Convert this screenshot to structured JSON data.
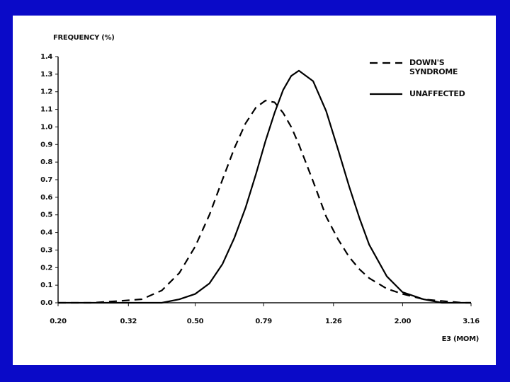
{
  "chart_data": {
    "type": "line",
    "y_label": "FREQUENCY (%)",
    "x_label": "E3 (MOM)",
    "x_scale": "log",
    "x": [
      0.2,
      0.25,
      0.3,
      0.35,
      0.4,
      0.45,
      0.5,
      0.55,
      0.6,
      0.65,
      0.7,
      0.75,
      0.8,
      0.85,
      0.9,
      0.95,
      1.0,
      1.1,
      1.2,
      1.3,
      1.4,
      1.5,
      1.6,
      1.8,
      2.0,
      2.3,
      2.6,
      3.0,
      3.16
    ],
    "series": [
      {
        "name": "DOWN'S SYNDROME",
        "color": "#000000",
        "dash": "dashed",
        "values": [
          0,
          0,
          0.01,
          0.02,
          0.07,
          0.17,
          0.32,
          0.5,
          0.7,
          0.88,
          1.02,
          1.11,
          1.15,
          1.14,
          1.08,
          1.0,
          0.9,
          0.69,
          0.49,
          0.36,
          0.26,
          0.19,
          0.14,
          0.08,
          0.05,
          0.02,
          0.01,
          0,
          0
        ]
      },
      {
        "name": "UNAFFECTED",
        "color": "#000000",
        "dash": "solid",
        "values": [
          0,
          0,
          0,
          0,
          0,
          0.02,
          0.05,
          0.11,
          0.22,
          0.37,
          0.54,
          0.73,
          0.92,
          1.08,
          1.21,
          1.29,
          1.32,
          1.26,
          1.09,
          0.87,
          0.66,
          0.48,
          0.33,
          0.15,
          0.06,
          0.02,
          0,
          0,
          0
        ]
      }
    ],
    "xlim": [
      0.2,
      3.16
    ],
    "xticks": [
      {
        "value": 0.2,
        "label": "0.20"
      },
      0.32,
      {
        "value": 0.5,
        "label": "0.50"
      },
      0.79,
      1.26,
      {
        "value": 2.0,
        "label": "2.00"
      },
      3.16
    ],
    "ylim": [
      0,
      1.4
    ],
    "yticks": [
      {
        "value": 0,
        "label": "0.0"
      },
      0.1,
      0.2,
      0.3,
      0.4,
      0.5,
      0.6,
      0.7,
      0.8,
      0.9,
      {
        "value": 1.0,
        "label": "1.0"
      },
      1.1,
      1.2,
      1.3,
      1.4
    ],
    "legend": "upper right"
  }
}
